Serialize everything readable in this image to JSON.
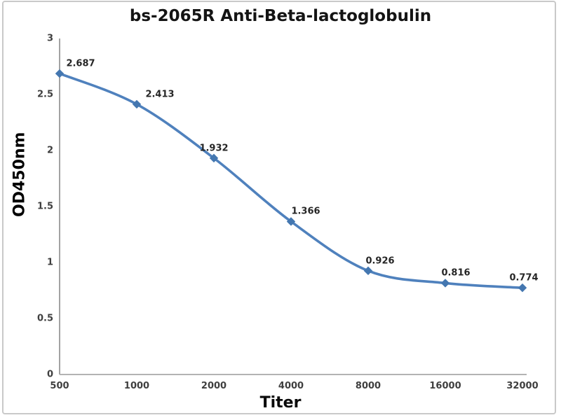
{
  "chart_data": {
    "type": "line",
    "title": "bs-2065R Anti-Beta-lactoglobulin",
    "xlabel": "Titer",
    "ylabel": "OD450nm",
    "categories": [
      "500",
      "1000",
      "2000",
      "4000",
      "8000",
      "16000",
      "32000"
    ],
    "values": [
      2.687,
      2.413,
      1.932,
      1.366,
      0.926,
      0.816,
      0.774
    ],
    "point_labels": [
      "2.687",
      "2.413",
      "1.932",
      "1.366",
      "0.926",
      "0.816",
      "0.774"
    ],
    "yticks": [
      0,
      0.5,
      1,
      1.5,
      2,
      2.5,
      3
    ],
    "ylim": [
      0,
      3
    ],
    "grid": false,
    "legend_position": "none",
    "marker": "diamond",
    "smooth": true,
    "colors": {
      "line": "#4f81bd",
      "marker": "#4477b0",
      "y_axis": "#8c8c8c",
      "x_axis": "#b3b3b3",
      "frame": "#c9c9c9",
      "tick_text": "#3f3f3f",
      "label_text": "#262626"
    }
  }
}
